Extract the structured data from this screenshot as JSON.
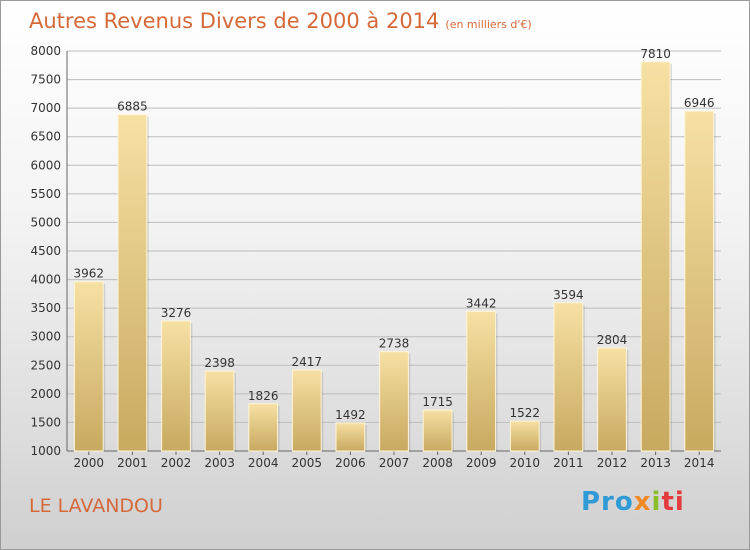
{
  "header": {
    "title": "Autres Revenus Divers de 2000 à 2014",
    "subtitle": "(en milliers d'€)"
  },
  "footer": {
    "commune": "LE LAVANDOU",
    "logo_parts": [
      "Pro",
      "x",
      "i",
      "ti"
    ]
  },
  "colors": {
    "title": "#d6693a",
    "bar_light": "#f6e0a3",
    "bar_dark": "#c8a960",
    "grid": "#bdbdbd"
  },
  "chart_data": {
    "type": "bar",
    "categories": [
      "2000",
      "2001",
      "2002",
      "2003",
      "2004",
      "2005",
      "2006",
      "2007",
      "2008",
      "2009",
      "2010",
      "2011",
      "2012",
      "2013",
      "2014"
    ],
    "values": [
      3962,
      6885,
      3276,
      2398,
      1826,
      2417,
      1492,
      2738,
      1715,
      3442,
      1522,
      3594,
      2804,
      7810,
      6946
    ],
    "data_labels": [
      "3962",
      "6885",
      "3276",
      "2398",
      "1826",
      "2417",
      "1492",
      "2738",
      "1715",
      "3442",
      "1522",
      "3594",
      "2804",
      "7810",
      "6946"
    ],
    "yticks": [
      "1000",
      "1500",
      "2000",
      "2500",
      "3000",
      "3500",
      "4000",
      "4500",
      "5000",
      "5500",
      "6000",
      "6500",
      "7000",
      "7500",
      "8000"
    ],
    "ylim": [
      1000,
      8000
    ],
    "grid": true,
    "legend": "none"
  }
}
